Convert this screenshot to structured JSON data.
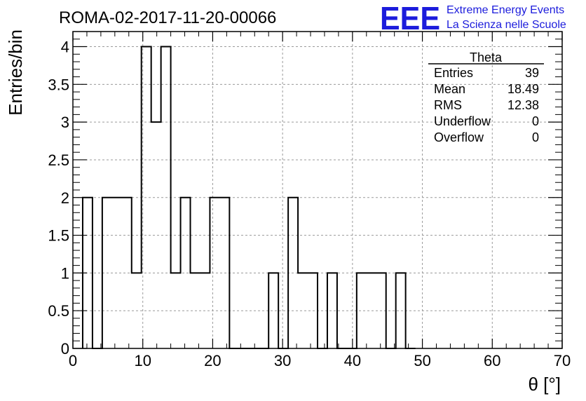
{
  "chart_data": {
    "type": "bar",
    "title": "ROMA-02-2017-11-20-00066",
    "xlabel": "θ [°]",
    "ylabel": "Entries/bin",
    "xlim": [
      0,
      70
    ],
    "ylim": [
      0,
      4.2
    ],
    "grid": true,
    "bin_width": 1.4,
    "x": [
      1.4,
      2.8,
      4.2,
      5.6,
      7.0,
      8.4,
      9.8,
      11.2,
      12.6,
      14.0,
      15.4,
      16.8,
      18.2,
      19.6,
      21.0,
      22.4,
      23.8,
      25.2,
      26.6,
      28.0,
      29.4,
      30.8,
      32.2,
      33.6,
      35.0,
      36.4,
      37.8,
      39.2,
      40.6,
      42.0,
      43.4,
      44.8,
      46.2,
      47.6
    ],
    "values": [
      2,
      0,
      2,
      2,
      2,
      1,
      4,
      3,
      4,
      1,
      2,
      1,
      1,
      2,
      2,
      0,
      0,
      0,
      0,
      1,
      0,
      2,
      1,
      1,
      0,
      1,
      0,
      0,
      1,
      1,
      1,
      0,
      1,
      0
    ],
    "x_ticks": [
      "0",
      "10",
      "20",
      "30",
      "40",
      "50",
      "60",
      "70"
    ],
    "y_ticks": [
      "0",
      "0.5",
      "1",
      "1.5",
      "2",
      "2.5",
      "3",
      "3.5",
      "4"
    ],
    "stats_box": {
      "title": "Theta",
      "rows": [
        {
          "label": "Entries",
          "value": "39"
        },
        {
          "label": "Mean",
          "value": "18.49"
        },
        {
          "label": "RMS",
          "value": "12.38"
        },
        {
          "label": "Underflow",
          "value": "0"
        },
        {
          "label": "Overflow",
          "value": "0"
        }
      ]
    }
  },
  "logo": {
    "mark": "EEE",
    "line1": "Extreme Energy Events",
    "line2": "La Scienza nelle Scuole",
    "color": "#1c1cdc"
  }
}
